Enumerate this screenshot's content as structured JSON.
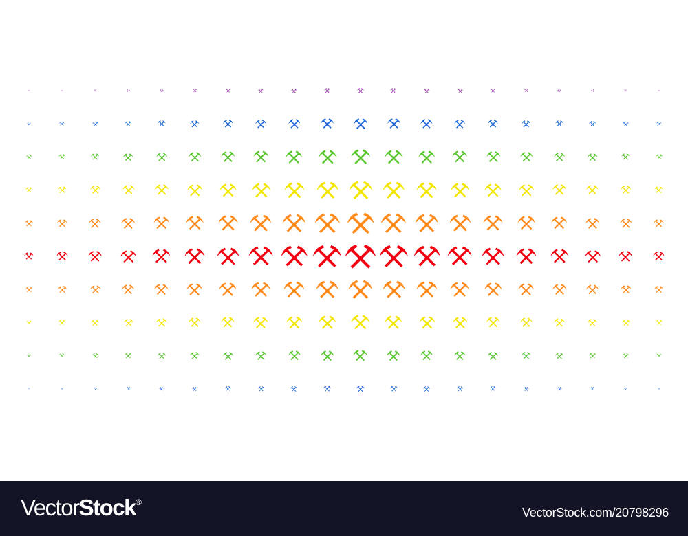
{
  "artwork": {
    "icon": "crossed-mining-hammers-icon",
    "columns": 20,
    "rows": 10,
    "row_colors": [
      "#9b2fae",
      "#1565d8",
      "#55c52a",
      "#f2e600",
      "#ff8a1c",
      "#f00010",
      "#ff8a1c",
      "#f2e600",
      "#55c52a",
      "#1565d8"
    ],
    "background": "#ffffff"
  },
  "footer": {
    "logo_light": "Vector",
    "logo_bold": "Stock",
    "logo_mark": "®",
    "url": "VectorStock.com/20798296",
    "background": "#131426"
  }
}
